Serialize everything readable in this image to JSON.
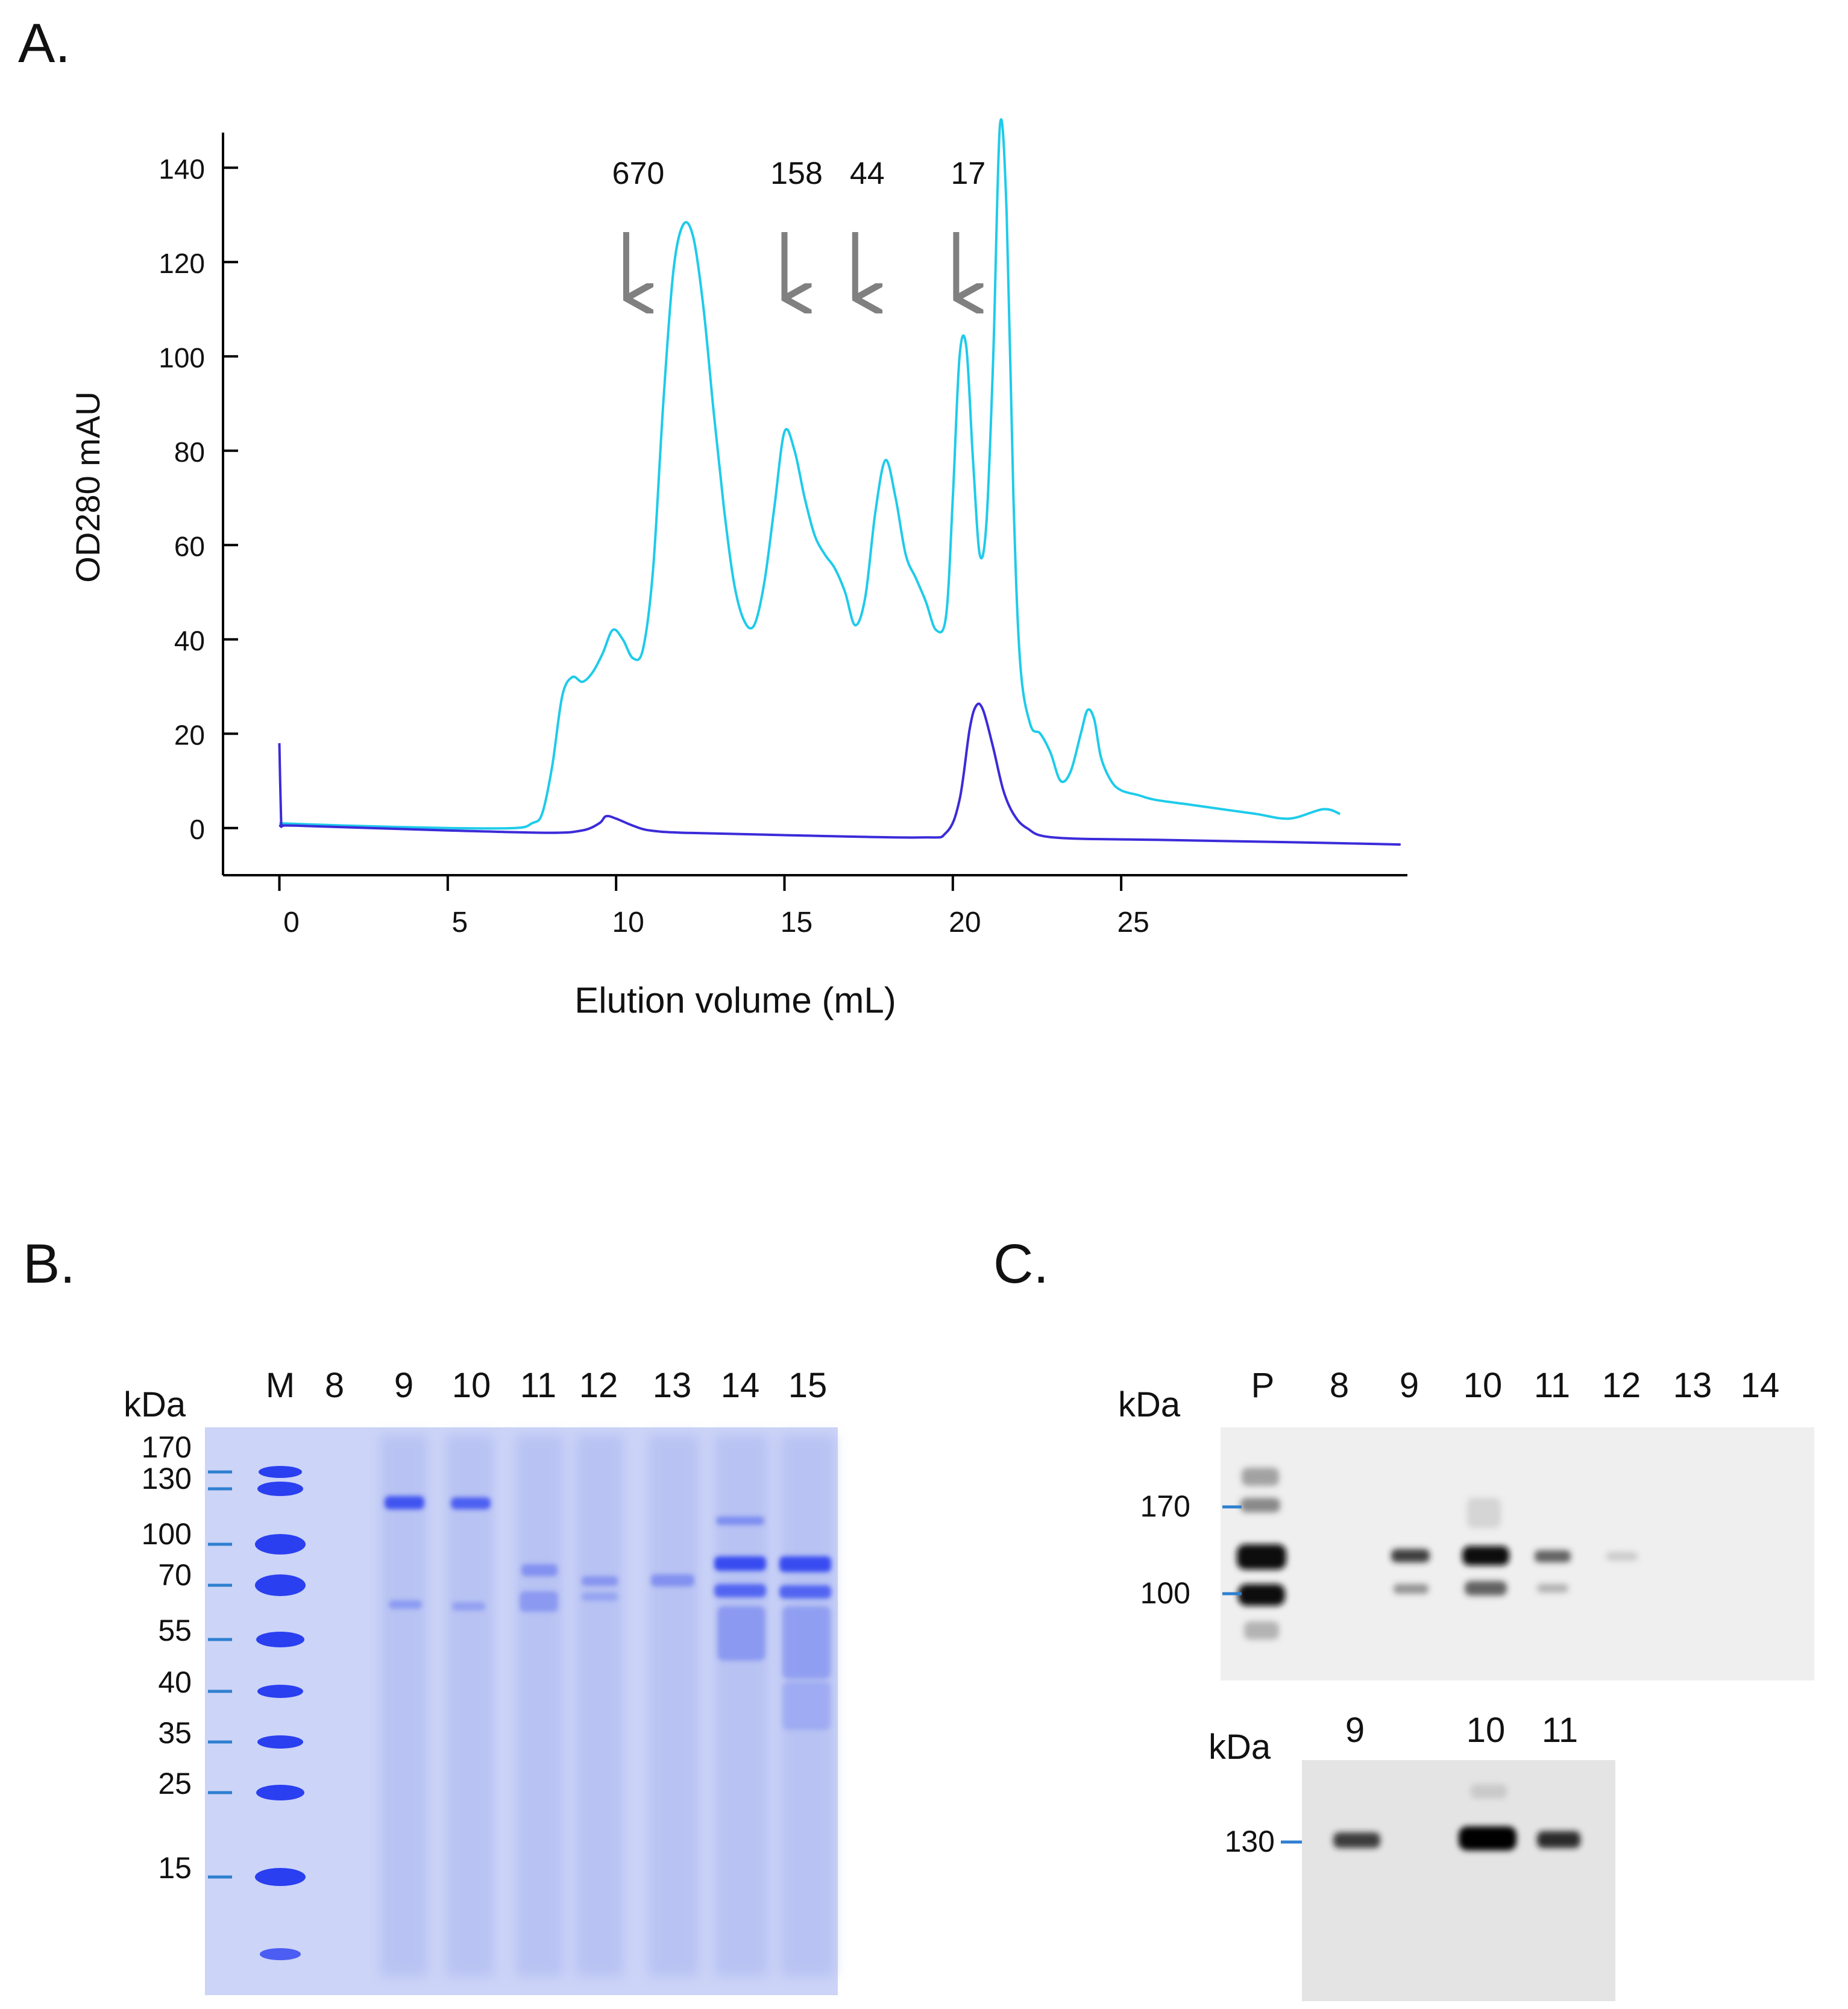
{
  "panels": {
    "a": "A.",
    "b": "B.",
    "c": "C."
  },
  "chart_data": {
    "type": "line",
    "title": "",
    "xlabel": "Elution volume (mL)",
    "ylabel": "OD280 mAU",
    "xlim": [
      -0.6,
      33.5
    ],
    "ylim": [
      -10,
      150
    ],
    "x_ticks": [
      0,
      5,
      10,
      15,
      20,
      25
    ],
    "x_tick_labels": [
      "0",
      "5",
      "10",
      "15",
      "20",
      "25"
    ],
    "y_ticks": [
      0,
      20,
      40,
      60,
      80,
      100,
      120,
      140
    ],
    "y_tick_labels": [
      "0",
      "20",
      "40",
      "60",
      "80",
      "100",
      "120",
      "140"
    ],
    "grid": false,
    "markers": [
      {
        "label": "670",
        "x": 10.3
      },
      {
        "label": "158",
        "x": 15.0
      },
      {
        "label": "44",
        "x": 17.1
      },
      {
        "label": "17",
        "x": 20.1
      }
    ],
    "series": [
      {
        "name": "cyan trace",
        "color": "#1ecbea",
        "x": [
          0,
          2,
          5,
          7,
          7.5,
          7.8,
          8.1,
          8.4,
          8.7,
          9.0,
          9.3,
          9.6,
          9.9,
          10.2,
          10.5,
          10.8,
          11.1,
          11.4,
          11.7,
          12.0,
          12.3,
          12.6,
          12.9,
          13.2,
          13.5,
          13.8,
          14.1,
          14.4,
          14.7,
          15.0,
          15.3,
          15.6,
          15.9,
          16.2,
          16.5,
          16.8,
          17.1,
          17.4,
          17.7,
          18.0,
          18.3,
          18.6,
          18.9,
          19.2,
          19.5,
          19.8,
          20.0,
          20.2,
          20.4,
          20.6,
          20.8,
          21.0,
          21.2,
          21.4,
          21.6,
          21.8,
          22.0,
          22.3,
          22.6,
          22.9,
          23.2,
          23.5,
          23.8,
          24.0,
          24.2,
          24.4,
          24.7,
          25.0,
          25.5,
          26.0,
          27.0,
          28.0,
          29.0,
          30.0,
          31.0,
          31.5
        ],
        "y": [
          1,
          0.5,
          0,
          0,
          1,
          3,
          13,
          28,
          32,
          31,
          33,
          37,
          42,
          40,
          36,
          38,
          55,
          90,
          118,
          128,
          125,
          110,
          88,
          68,
          52,
          44,
          43,
          52,
          68,
          84,
          80,
          70,
          62,
          58,
          55,
          50,
          43,
          49,
          67,
          78,
          70,
          58,
          53,
          48,
          42,
          45,
          70,
          100,
          102,
          78,
          58,
          65,
          100,
          149,
          130,
          70,
          35,
          22,
          20,
          16,
          10,
          12,
          20,
          25,
          23,
          15,
          10,
          8,
          7,
          6,
          5,
          4,
          3,
          2,
          4,
          3
        ]
      },
      {
        "name": "dark blue trace",
        "color": "#3b2bd9",
        "x": [
          0,
          0.05,
          0.1,
          0.5,
          5,
          8,
          9,
          9.5,
          9.7,
          10.0,
          10.5,
          11.0,
          12,
          15,
          19,
          19.8,
          20.2,
          20.5,
          20.7,
          20.9,
          21.2,
          21.5,
          21.8,
          22.2,
          23,
          26,
          30,
          33.3
        ],
        "y": [
          18,
          2,
          0.5,
          0.5,
          -0.5,
          -1,
          -0.5,
          1,
          2.5,
          2,
          0.5,
          -0.5,
          -1,
          -1.5,
          -2,
          -1,
          6,
          21,
          26,
          25,
          17,
          8,
          3,
          0,
          -2,
          -2.5,
          -3,
          -3.5
        ]
      }
    ]
  },
  "gel_b": {
    "kda": "kDa",
    "lanes": [
      "M",
      "8",
      "9",
      "10",
      "11",
      "12",
      "13",
      "14",
      "15"
    ],
    "markers": [
      "170",
      "130",
      "100",
      "70",
      "55",
      "40",
      "35",
      "25",
      "15"
    ]
  },
  "blot_c_top": {
    "kda": "kDa",
    "lanes": [
      "P",
      "8",
      "9",
      "10",
      "11",
      "12",
      "13",
      "14"
    ],
    "markers": [
      "170",
      "100"
    ]
  },
  "blot_c_bottom": {
    "kda": "kDa",
    "lanes": [
      "9",
      "10",
      "11"
    ],
    "markers": [
      "130"
    ]
  },
  "colors": {
    "marker_tick": "#2f7fd0",
    "arrow": "#808080",
    "gel_background": "#ccd4f7",
    "gel_band": "#2a3ff0",
    "blot_background": "#efefef",
    "blot_band": "#111111"
  }
}
